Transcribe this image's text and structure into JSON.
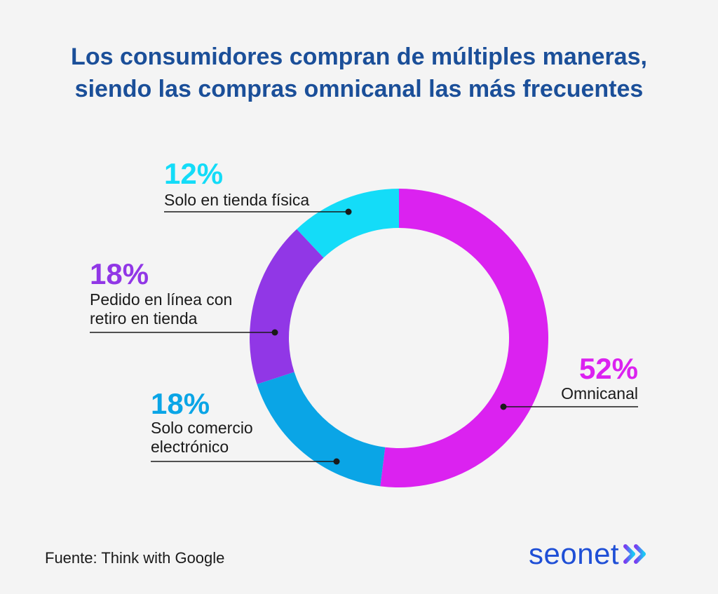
{
  "title": {
    "line1": "Los consumidores compran de múltiples maneras,",
    "line2": "siendo las compras omnicanal las más frecuentes"
  },
  "chart_data": {
    "type": "pie",
    "variant": "donut",
    "start": "top",
    "direction": "clockwise",
    "slices": [
      {
        "key": "omni",
        "value": 52,
        "pct_text": "52%",
        "label_lines": [
          "Omnicanal"
        ],
        "color": "#db22f0"
      },
      {
        "key": "ecom",
        "value": 18,
        "pct_text": "18%",
        "label_lines": [
          "Solo comercio",
          "electrónico"
        ],
        "color": "#0aa5e6"
      },
      {
        "key": "pickup",
        "value": 18,
        "pct_text": "18%",
        "label_lines": [
          "Pedido en línea con",
          "retiro en tienda"
        ],
        "color": "#9137e6"
      },
      {
        "key": "store",
        "value": 12,
        "pct_text": "12%",
        "label_lines": [
          "Solo en tienda física"
        ],
        "color": "#14dcf8"
      }
    ]
  },
  "footer": {
    "source": "Fuente:  Think with Google",
    "brand": "seonet"
  },
  "colors": {
    "title": "#1b4f99",
    "brand": "#1f4fd6",
    "text": "#1a1a1a",
    "background": "#f4f4f4"
  }
}
